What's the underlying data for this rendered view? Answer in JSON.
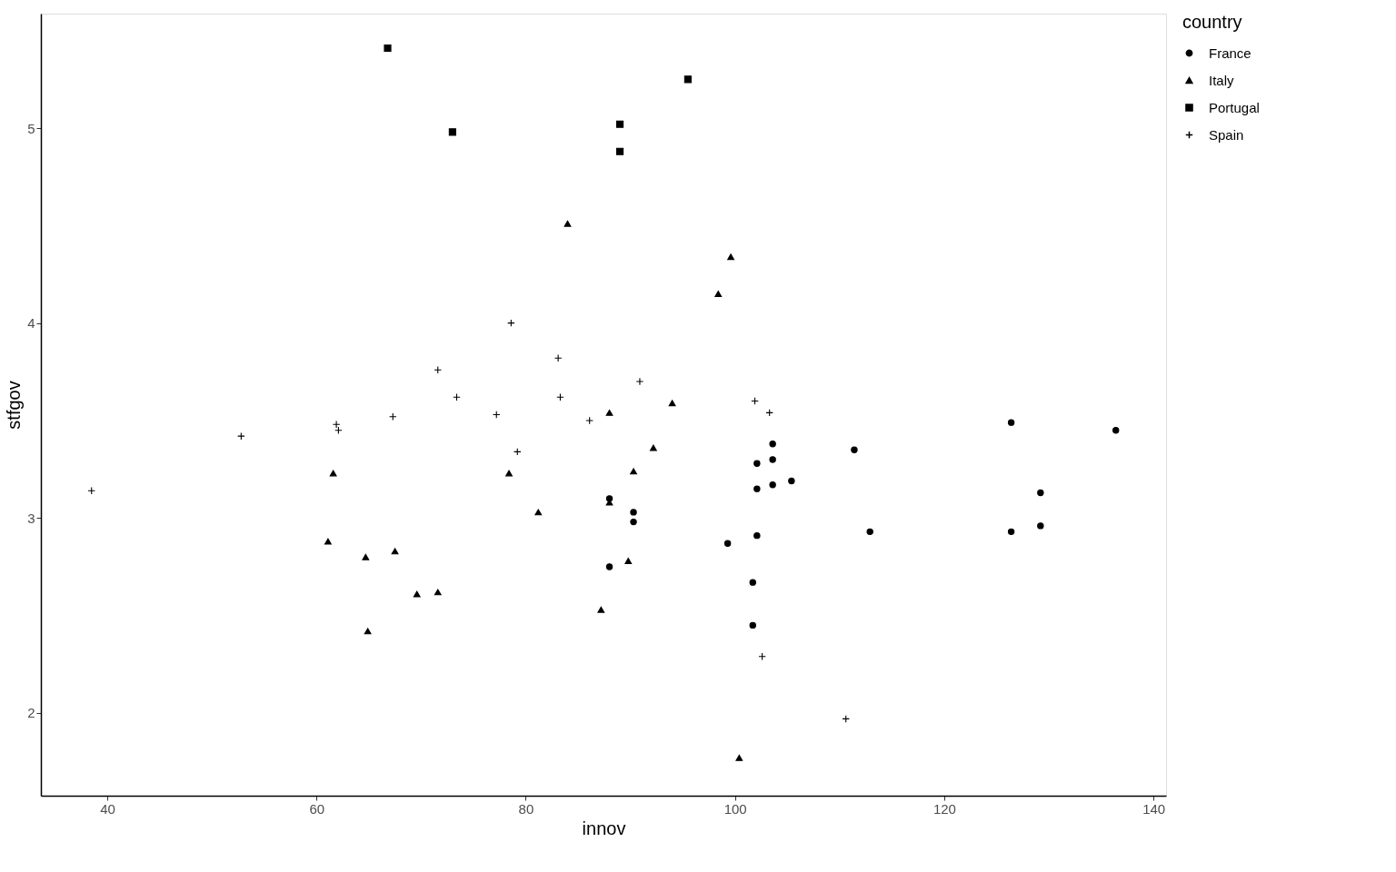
{
  "chart_data": {
    "type": "scatter",
    "xlabel": "innov",
    "ylabel": "stfgov",
    "legend_title": "country",
    "legend": "right",
    "grid": false,
    "xlim": [
      33.66,
      141.2
    ],
    "ylim": [
      1.576,
      5.587
    ],
    "xticks": [
      40,
      60,
      80,
      100,
      120,
      140
    ],
    "yticks": [
      2,
      3,
      4,
      5
    ],
    "series": [
      {
        "name": "France",
        "color": "#000000",
        "marker": "circle",
        "x": [
          126.4,
          136.4,
          129.2,
          129.2,
          126.4,
          111.4,
          112.9,
          103.6,
          103.6,
          105.4,
          103.6,
          102.1,
          102.1,
          102.1,
          99.3,
          101.7,
          101.7,
          88.0,
          90.3,
          90.3,
          88.0
        ],
        "values": [
          3.49,
          3.45,
          3.13,
          2.96,
          2.93,
          3.35,
          2.93,
          3.38,
          3.3,
          3.19,
          3.17,
          3.28,
          3.15,
          2.91,
          2.87,
          2.67,
          2.45,
          3.1,
          3.03,
          2.98,
          2.75
        ]
      },
      {
        "name": "Italy",
        "color": "#000000",
        "marker": "triangle",
        "x": [
          84.0,
          99.6,
          98.4,
          94.0,
          88.0,
          92.2,
          90.3,
          78.4,
          61.6,
          88.0,
          81.2,
          61.1,
          67.5,
          64.7,
          89.8,
          71.6,
          69.6,
          87.2,
          64.9,
          100.4
        ],
        "values": [
          4.51,
          4.34,
          4.15,
          3.59,
          3.54,
          3.36,
          3.24,
          3.23,
          3.23,
          3.08,
          3.03,
          2.88,
          2.83,
          2.8,
          2.78,
          2.62,
          2.61,
          2.53,
          2.42,
          1.77
        ]
      },
      {
        "name": "Portugal",
        "color": "#000000",
        "marker": "square",
        "x": [
          66.8,
          95.5,
          89.0,
          73.0,
          89.0
        ],
        "values": [
          5.41,
          5.25,
          5.02,
          4.98,
          4.88
        ]
      },
      {
        "name": "Spain",
        "color": "#000000",
        "marker": "cross",
        "x": [
          38.5,
          52.8,
          61.9,
          62.1,
          67.3,
          71.6,
          73.4,
          78.6,
          77.2,
          79.2,
          83.1,
          83.3,
          86.1,
          90.9,
          101.9,
          103.3,
          102.6,
          110.6
        ],
        "values": [
          3.14,
          3.42,
          3.48,
          3.45,
          3.52,
          3.76,
          3.62,
          4.0,
          3.53,
          3.34,
          3.82,
          3.62,
          3.5,
          3.7,
          3.6,
          3.54,
          2.29,
          1.97
        ]
      }
    ]
  }
}
